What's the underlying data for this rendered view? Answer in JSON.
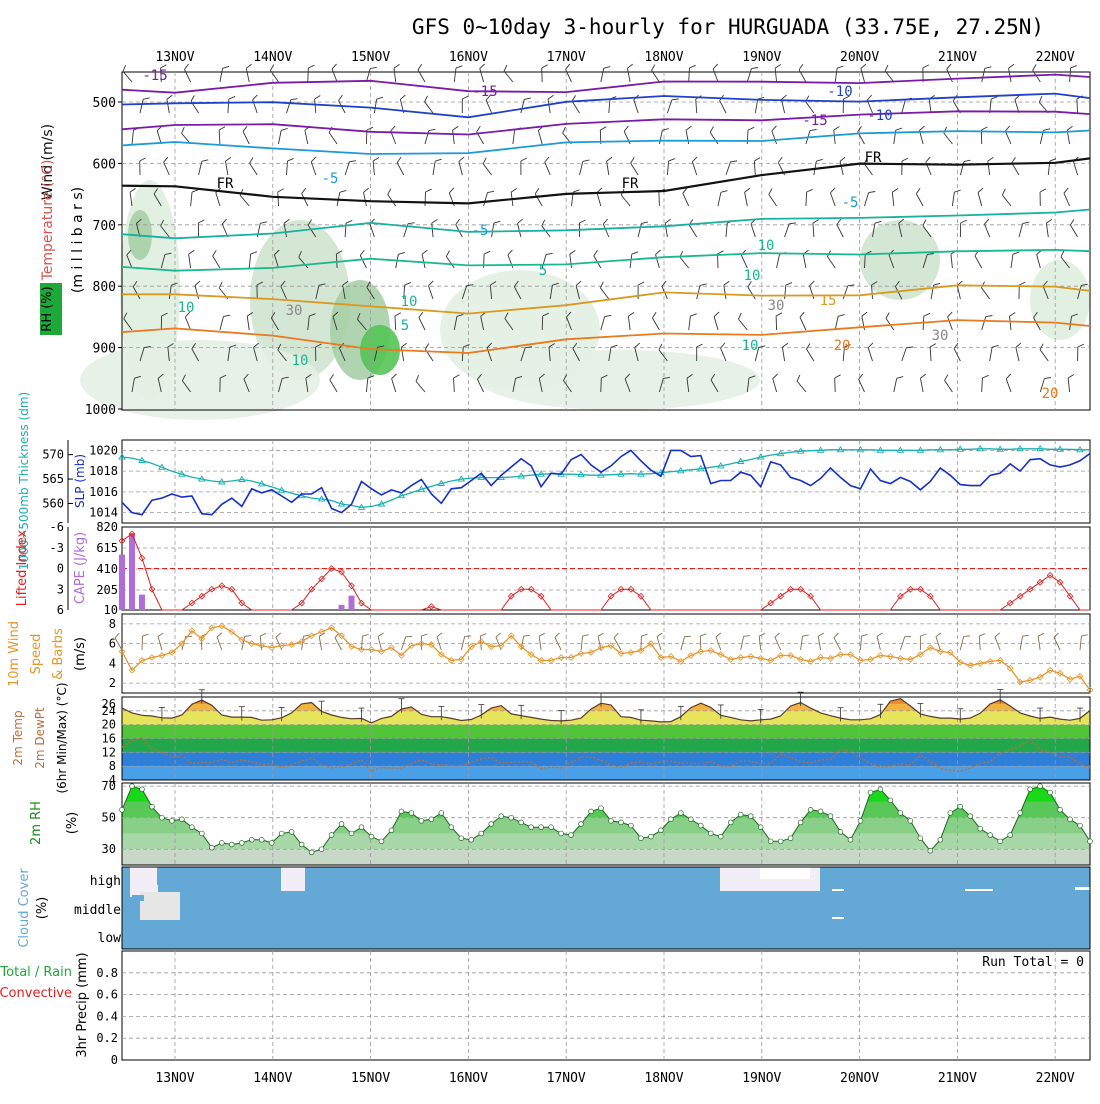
{
  "title": "GFS 0~10day 3-hourly for HURGUADA (33.75E, 27.25N)",
  "colors": {
    "wind_label": "#111111",
    "temp_label": "#d9534f",
    "rh_label": "#1ea83a",
    "thickness": "#18b0b0",
    "slp": "#1530c8",
    "cape": "#b06cd8",
    "lifted_index": "#e02020",
    "wind10": "#e6962a",
    "temp2m": "#b8703a",
    "rh2m": "#1a8c1a",
    "cloud": "#64a9d6",
    "precip_total": "#1ea83a",
    "precip_conv": "#e02020"
  },
  "chart_data": [
    {
      "panel": "upper-air",
      "type": "heatmap",
      "x_dates": [
        "13NOV",
        "14NOV",
        "15NOV",
        "16NOV",
        "17NOV",
        "18NOV",
        "19NOV",
        "20NOV",
        "21NOV",
        "22NOV"
      ],
      "y_ticks": [
        "500",
        "600",
        "700",
        "800",
        "900",
        "1000"
      ],
      "ylabel_axis": "(m i l l i b a r s)",
      "ylabel_parts": [
        "Wind (m/s)",
        "Temperature (°C)",
        "RH (%)"
      ],
      "ylim": [
        1000,
        450
      ],
      "contour_labels": [
        "-15",
        "-15",
        "-10",
        "-15",
        "-10",
        "-5",
        "FR",
        "FR",
        "FR",
        "-5",
        "-5",
        "5",
        "10",
        "15",
        "20",
        "10",
        "5",
        "10",
        "10",
        "30",
        "30",
        "10",
        "10",
        "30",
        "20"
      ],
      "isotherms": [
        {
          "label": "-15",
          "p": [
            480,
            470,
            470,
            480,
            480,
            470,
            470,
            465,
            460,
            460
          ]
        },
        {
          "label": "-10",
          "p": [
            500,
            505,
            510,
            520,
            500,
            495,
            495,
            495,
            495,
            490
          ]
        },
        {
          "label": "-15",
          "p": [
            540,
            540,
            545,
            550,
            540,
            530,
            525,
            520,
            520,
            515
          ]
        },
        {
          "label": "-5",
          "p": [
            570,
            575,
            580,
            585,
            570,
            560,
            560,
            555,
            550,
            545
          ]
        },
        {
          "label": "FR",
          "p": [
            640,
            650,
            660,
            670,
            650,
            640,
            620,
            605,
            600,
            595
          ]
        },
        {
          "label": "5",
          "p": [
            720,
            710,
            700,
            715,
            705,
            700,
            695,
            690,
            680,
            680
          ]
        },
        {
          "label": "10",
          "p": [
            770,
            770,
            760,
            765,
            760,
            755,
            750,
            745,
            740,
            745
          ]
        },
        {
          "label": "15",
          "p": [
            810,
            825,
            835,
            840,
            830,
            815,
            815,
            810,
            800,
            805
          ]
        },
        {
          "label": "20",
          "p": [
            870,
            885,
            900,
            905,
            890,
            880,
            875,
            865,
            860,
            860
          ]
        }
      ]
    },
    {
      "panel": "thickness-slp",
      "type": "line",
      "ylabel_left": "1000~500mb Thickness (dm)",
      "ylabel_right": "SLP (mb)",
      "left_ticks": [
        "560",
        "565",
        "570"
      ],
      "right_ticks": [
        "1014",
        "1016",
        "1018",
        "1020"
      ],
      "thickness_ylim": [
        556,
        573
      ],
      "slp_ylim": [
        1013,
        1021
      ],
      "thickness": [
        569.5,
        569.3,
        568.8,
        568.2,
        567.4,
        566.6,
        566.0,
        565.4,
        565.0,
        564.6,
        564.4,
        564.6,
        564.9,
        564.6,
        564.0,
        563.4,
        562.7,
        562.1,
        561.6,
        561.1,
        560.9,
        560.6,
        559.9,
        559.6,
        559.2,
        559.4,
        559.9,
        560.7,
        561.6,
        562.2,
        562.9,
        563.5,
        564.1,
        564.6,
        565.0,
        565.2,
        565.3,
        565.3,
        565.3,
        565.4,
        565.6,
        565.8,
        566.0,
        566.1,
        566.0,
        566.0,
        565.9,
        565.8,
        565.8,
        565.9,
        566.0,
        566.1,
        566.0,
        566.1,
        566.3,
        566.5,
        566.7,
        566.9,
        567.1,
        567.4,
        567.7,
        568.1,
        568.6,
        569.0,
        569.5,
        569.9,
        570.2,
        570.5,
        570.7,
        570.8,
        570.9,
        571.0,
        571.0,
        571.0,
        571.0,
        571.0,
        570.9,
        570.9,
        570.9,
        570.9,
        570.9,
        571.0,
        571.0,
        571.0,
        571.1,
        571.1,
        571.2,
        571.2,
        571.1,
        571.1,
        571.2,
        571.2,
        571.2,
        571.1,
        571.1,
        571.1,
        571.0,
        571.0
      ],
      "slp": [
        1015.0,
        1014.0,
        1013.8,
        1015.2,
        1015.4,
        1015.8,
        1015.5,
        1015.6,
        1013.9,
        1013.8,
        1014.8,
        1015.4,
        1014.6,
        1016.3,
        1015.9,
        1016.2,
        1015.6,
        1015.0,
        1015.8,
        1015.8,
        1016.4,
        1014.4,
        1014.0,
        1014.8,
        1017.0,
        1016.3,
        1015.7,
        1016.2,
        1015.9,
        1016.6,
        1017.2,
        1015.8,
        1014.9,
        1016.3,
        1016.4,
        1017.1,
        1017.8,
        1016.6,
        1017.6,
        1018.4,
        1019.2,
        1018.5,
        1016.5,
        1017.8,
        1017.7,
        1019.1,
        1019.6,
        1018.6,
        1017.9,
        1018.5,
        1019.4,
        1020.0,
        1019.0,
        1018.1,
        1017.5,
        1020.0,
        1020.0,
        1019.4,
        1019.5,
        1016.8,
        1017.1,
        1017.1,
        1017.9,
        1017.6,
        1016.5,
        1018.9,
        1018.6,
        1017.4,
        1017.1,
        1016.6,
        1017.3,
        1018.3,
        1017.4,
        1016.6,
        1016.3,
        1018.2,
        1017.1,
        1016.8,
        1017.4,
        1017.0,
        1016.2,
        1017.0,
        1018.3,
        1017.6,
        1016.7,
        1016.6,
        1016.6,
        1017.6,
        1017.8,
        1018.7,
        1018.0,
        1019.1,
        1019.2,
        1018.6,
        1018.4,
        1018.6,
        1019.0,
        1019.7
      ]
    },
    {
      "panel": "cape-li",
      "type": "bar",
      "ylabel_left": "Lifted Index",
      "ylabel_right": "CAPE (J/kg)",
      "li_ticks": [
        "-6",
        "-3",
        "0",
        "3",
        "6"
      ],
      "cape_ticks": [
        "10",
        "205",
        "410",
        "615",
        "820"
      ],
      "cape_ylim": [
        10,
        820
      ],
      "li_ylim": [
        -6,
        6
      ],
      "cape": [
        540,
        750,
        150,
        0,
        0,
        0,
        0,
        0,
        0,
        0,
        0,
        0,
        0,
        0,
        0,
        0,
        0,
        0,
        0,
        0,
        0,
        0,
        50,
        140,
        0,
        0,
        0,
        0,
        0,
        0,
        0,
        0,
        0,
        0,
        0,
        0,
        0,
        0,
        0,
        0,
        0,
        0,
        0,
        0,
        0,
        0,
        0,
        0,
        0,
        0,
        0,
        0,
        0,
        0,
        0,
        0,
        0,
        0,
        0,
        0,
        0,
        0,
        0,
        0,
        0,
        0,
        0,
        0,
        0,
        0,
        0,
        0,
        0,
        0,
        0,
        0,
        0,
        0,
        0,
        0,
        0,
        0,
        0,
        0,
        0,
        0,
        0,
        0,
        0,
        0,
        0,
        0,
        0,
        0,
        0,
        0,
        0,
        0
      ],
      "lifted_index": [
        -4,
        -5,
        -1.5,
        3,
        6,
        6,
        6,
        5,
        4,
        3,
        2.5,
        3,
        5,
        6,
        6,
        6,
        6,
        6,
        5,
        3,
        1.5,
        0,
        0.5,
        2.5,
        5,
        6,
        6,
        6,
        6,
        6,
        6,
        5.5,
        6,
        6,
        6,
        6,
        6,
        6,
        6,
        4,
        3,
        3,
        4,
        6,
        6,
        6,
        6,
        6,
        6,
        4,
        3,
        3,
        4,
        6,
        6,
        6,
        6,
        6,
        6,
        6,
        6,
        6,
        6,
        6,
        6,
        5,
        4,
        3,
        3,
        4,
        6,
        6,
        6,
        6,
        6,
        6,
        6,
        6,
        4,
        3,
        3,
        4,
        6,
        6,
        6,
        6,
        6,
        6,
        6,
        5,
        4,
        3,
        2,
        1,
        2,
        4,
        6,
        6
      ]
    },
    {
      "panel": "wind10m",
      "type": "line",
      "ylabel": "10m Wind Speed & Barbs (m/s)",
      "ylabel_lines": [
        "10m Wind",
        "Speed",
        "& Barbs",
        "(m/s)"
      ],
      "y_ticks": [
        "2",
        "4",
        "6",
        "8"
      ],
      "ylim": [
        1,
        9
      ],
      "speed": [
        5.2,
        3.3,
        4.3,
        4.6,
        4.8,
        5.1,
        6.0,
        7.3,
        6.5,
        7.6,
        7.8,
        7.2,
        6.4,
        6.0,
        5.8,
        5.6,
        5.8,
        5.9,
        6.2,
        6.8,
        7.2,
        7.6,
        6.8,
        5.7,
        5.4,
        5.4,
        5.2,
        5.6,
        4.8,
        5.8,
        6.0,
        5.9,
        4.9,
        4.3,
        4.4,
        5.7,
        6.2,
        5.7,
        5.8,
        6.8,
        5.7,
        4.9,
        4.3,
        4.3,
        4.6,
        4.6,
        5.0,
        5.1,
        5.6,
        5.8,
        5.0,
        5.1,
        5.3,
        6.0,
        4.6,
        4.7,
        4.2,
        4.8,
        5.2,
        5.3,
        4.9,
        4.4,
        4.6,
        4.7,
        4.5,
        4.3,
        4.8,
        4.8,
        4.4,
        4.2,
        4.6,
        4.5,
        4.9,
        4.9,
        4.3,
        4.4,
        4.8,
        4.7,
        4.5,
        4.4,
        4.9,
        5.6,
        5.2,
        5.1,
        4.1,
        3.8,
        4.0,
        4.2,
        4.3,
        3.5,
        2.1,
        2.3,
        2.6,
        3.3,
        3.0,
        2.4,
        2.7,
        1.3
      ]
    },
    {
      "panel": "temp2m",
      "type": "area",
      "ylabel_lines": [
        "2m Temp",
        "2m DewPt",
        "(6hr Min/Max) (°C)"
      ],
      "y_ticks": [
        "4",
        "8",
        "12",
        "16",
        "20",
        "24",
        "26"
      ],
      "ylim": [
        4,
        28
      ],
      "temp": [
        24.8,
        23.4,
        22.7,
        22.5,
        22.0,
        21.9,
        22.8,
        25.9,
        27.1,
        25.6,
        22.8,
        22.2,
        22.2,
        22.1,
        21.3,
        21.4,
        22.0,
        23.4,
        26.0,
        26.4,
        23.8,
        22.8,
        22.1,
        21.7,
        21.8,
        20.5,
        21.8,
        22.4,
        24.5,
        25.1,
        23.0,
        22.3,
        22.3,
        21.8,
        21.2,
        21.5,
        22.8,
        24.8,
        25.5,
        23.1,
        22.6,
        22.1,
        21.6,
        21.2,
        21.1,
        21.3,
        21.9,
        24.5,
        26.2,
        25.7,
        22.3,
        22.1,
        21.3,
        21.1,
        20.8,
        20.9,
        22.3,
        24.9,
        26.2,
        25.0,
        22.7,
        22.1,
        21.4,
        21.1,
        21.4,
        21.6,
        22.5,
        25.4,
        26.4,
        24.8,
        23.4,
        22.6,
        21.9,
        21.4,
        21.4,
        21.7,
        22.9,
        26.8,
        27.5,
        25.4,
        23.1,
        22.4,
        21.9,
        21.9,
        21.6,
        21.9,
        23.3,
        26.0,
        27.2,
        25.4,
        23.4,
        22.5,
        21.8,
        22.2,
        21.6,
        21.3,
        21.8,
        24.1
      ],
      "dewpt": [
        13.5,
        15.3,
        16.2,
        13.0,
        12.0,
        10.4,
        11.2,
        8.7,
        9.1,
        9.0,
        9.9,
        9.0,
        9.8,
        9.2,
        8.5,
        8.7,
        7.7,
        8.4,
        9.5,
        10.3,
        8.5,
        7.5,
        7.8,
        8.6,
        9.8,
        6.5,
        7.6,
        7.4,
        7.4,
        8.8,
        9.8,
        8.7,
        8.4,
        8.2,
        8.1,
        9.1,
        10.2,
        10.5,
        8.9,
        9.2,
        9.3,
        9.2,
        7.3,
        7.7,
        7.5,
        9.1,
        10.6,
        10.6,
        9.7,
        8.4,
        7.6,
        8.9,
        9.2,
        8.6,
        9.2,
        9.5,
        8.8,
        8.9,
        8.7,
        9.3,
        8.1,
        8.0,
        9.4,
        9.4,
        8.7,
        8.8,
        11.4,
        10.5,
        9.3,
        8.9,
        9.8,
        10.0,
        12.9,
        12.3,
        10.3,
        8.9,
        7.7,
        8.0,
        8.8,
        8.4,
        11.2,
        9.5,
        7.4,
        6.8,
        6.5,
        7.4,
        8.8,
        9.4,
        11.7,
        12.9,
        13.8,
        15.7,
        12.8,
        12.0,
        10.7,
        10.7,
        8.6,
        7.4
      ]
    },
    {
      "panel": "rh2m",
      "type": "area",
      "ylabel": "2m RH (%)",
      "y_ticks": [
        "30",
        "50",
        "70"
      ],
      "ylim": [
        20,
        72
      ],
      "rh": [
        55,
        70,
        68,
        57,
        50,
        48,
        49,
        44,
        40,
        31,
        34,
        33,
        34,
        36,
        36,
        34,
        40,
        41,
        33,
        28,
        30,
        39,
        46,
        40,
        44,
        38,
        35,
        42,
        54,
        53,
        48,
        49,
        53,
        44,
        37,
        36,
        40,
        46,
        51,
        50,
        47,
        44,
        44,
        44,
        40,
        39,
        46,
        54,
        56,
        48,
        47,
        45,
        37,
        38,
        42,
        49,
        53,
        49,
        45,
        40,
        38,
        47,
        52,
        51,
        44,
        35,
        35,
        37,
        47,
        55,
        54,
        51,
        41,
        36,
        48,
        66,
        68,
        61,
        53,
        48,
        37,
        29,
        36,
        53,
        57,
        51,
        43,
        39,
        35,
        39,
        53,
        68,
        70,
        66,
        55,
        49,
        45,
        35
      ]
    },
    {
      "panel": "cloud",
      "type": "heatmap",
      "ylabel": "Cloud Cover (%)",
      "levels": [
        "high",
        "middle",
        "low"
      ],
      "note": "mostly clear (blue) with high cloud near start, 14NOV and 19NOV"
    },
    {
      "panel": "precip",
      "type": "bar",
      "ylabel": "3hr Precip (mm)",
      "ylabel_left_lines": [
        "Total / Rain",
        "Convective"
      ],
      "y_ticks": [
        "0",
        "0.2",
        "0.4",
        "0.6",
        "0.8"
      ],
      "ylim": [
        0,
        1
      ],
      "run_total": "Run Total = 0",
      "precip": []
    }
  ]
}
